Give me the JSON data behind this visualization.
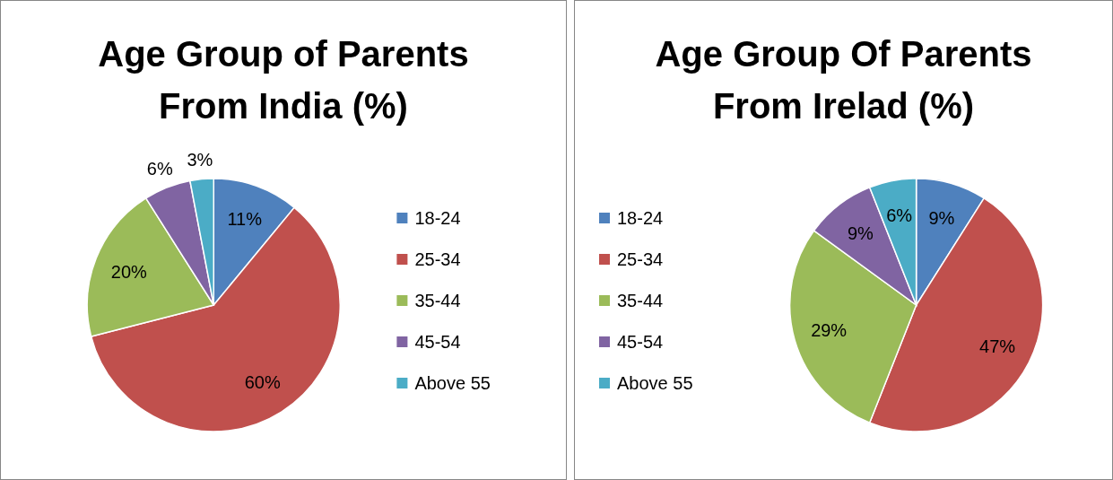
{
  "chart_data": [
    {
      "type": "pie",
      "title": "Age Group of Parents From India (%)",
      "categories": [
        "18-24",
        "25-34",
        "35-44",
        "45-54",
        "Above 55"
      ],
      "values": [
        11,
        60,
        20,
        6,
        3
      ],
      "value_labels": [
        "11%",
        "60%",
        "20%",
        "6%",
        "3%"
      ],
      "colors": [
        "#4f81bd",
        "#c0504d",
        "#9bbb59",
        "#8064a2",
        "#4bacc6"
      ],
      "legend": "right"
    },
    {
      "type": "pie",
      "title": "Age Group Of Parents From Irelad (%)",
      "categories": [
        "18-24",
        "25-34",
        "35-44",
        "45-54",
        "Above 55"
      ],
      "values": [
        9,
        47,
        29,
        9,
        6
      ],
      "value_labels": [
        "9%",
        "47%",
        "29%",
        "9%",
        "6%"
      ],
      "colors": [
        "#4f81bd",
        "#c0504d",
        "#9bbb59",
        "#8064a2",
        "#4bacc6"
      ],
      "legend": "left"
    }
  ]
}
